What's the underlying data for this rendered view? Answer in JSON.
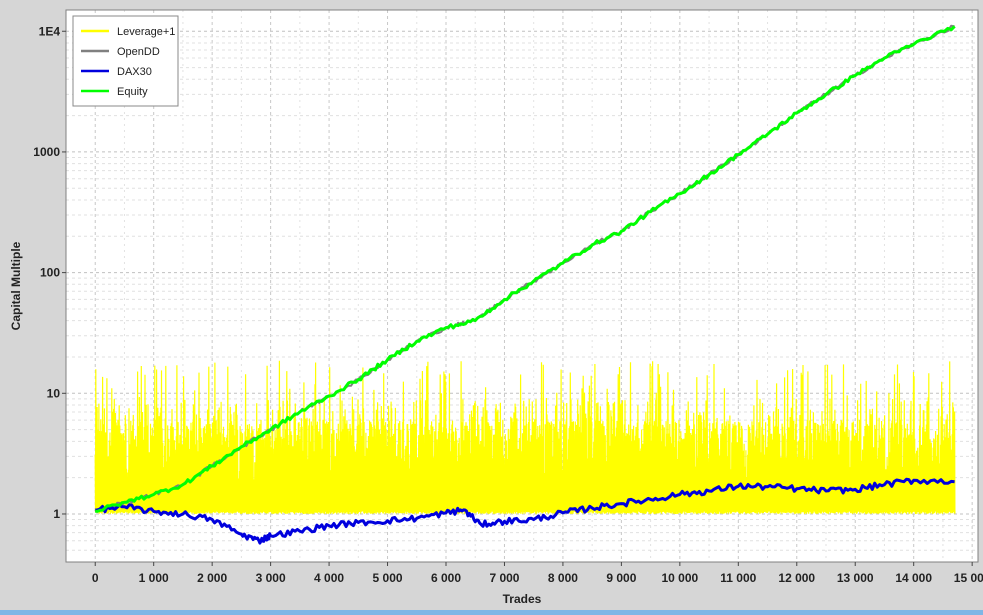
{
  "chart_data": {
    "type": "line",
    "title": "",
    "xlabel": "Trades",
    "ylabel": "Capital Multiple",
    "xlim": [
      -500,
      15100
    ],
    "ylim": [
      0.4,
      15000
    ],
    "y_scale": "log",
    "grid": true,
    "legend_position": "top-left",
    "x_ticks": [
      0,
      1000,
      2000,
      3000,
      4000,
      5000,
      6000,
      7000,
      8000,
      9000,
      10000,
      11000,
      12000,
      13000,
      14000,
      15000
    ],
    "x_tick_labels": [
      "0",
      "1 000",
      "2 000",
      "3 000",
      "4 000",
      "5 000",
      "6 000",
      "7 000",
      "8 000",
      "9 000",
      "10 000",
      "11 000",
      "12 000",
      "13 000",
      "14 000",
      "15 000"
    ],
    "y_ticks": [
      1,
      10,
      100,
      1000,
      10000
    ],
    "y_tick_labels": [
      "1",
      "10",
      "100",
      "1000",
      "1E4"
    ],
    "series": [
      {
        "name": "Leverage+1",
        "color": "#ffff00",
        "style": "band",
        "x_range": [
          0,
          14700
        ],
        "min": 1,
        "typical_max": 6,
        "peak_max": 19
      },
      {
        "name": "OpenDD",
        "color": "#808080",
        "x": [
          0,
          500,
          1000,
          1500,
          2000,
          2500,
          3000,
          3500,
          4000,
          4500,
          5000,
          5500,
          6000,
          6500,
          7000,
          7500,
          8000,
          8500,
          9000,
          9500,
          10000,
          10500,
          11000,
          11500,
          12000,
          12500,
          13000,
          13500,
          14000,
          14700
        ],
        "y": [
          1.05,
          1.25,
          1.45,
          1.75,
          2.5,
          3.6,
          5,
          7,
          9.5,
          13,
          19,
          27,
          35,
          40,
          60,
          85,
          120,
          170,
          220,
          320,
          450,
          650,
          950,
          1400,
          2100,
          3000,
          4300,
          6000,
          7800,
          11000
        ]
      },
      {
        "name": "DAX30",
        "color": "#0000dd",
        "x": [
          0,
          500,
          1000,
          1500,
          2000,
          2500,
          2800,
          3000,
          3500,
          4000,
          4500,
          5000,
          5500,
          6000,
          6300,
          6600,
          7000,
          7500,
          8000,
          8500,
          9000,
          9500,
          10000,
          10500,
          11000,
          11500,
          12000,
          12500,
          13000,
          13500,
          14000,
          14700
        ],
        "y": [
          1.08,
          1.15,
          1.05,
          1.0,
          0.9,
          0.68,
          0.6,
          0.66,
          0.72,
          0.8,
          0.85,
          0.88,
          0.92,
          1.02,
          1.08,
          0.82,
          0.87,
          0.9,
          1.02,
          1.12,
          1.22,
          1.32,
          1.45,
          1.55,
          1.7,
          1.68,
          1.62,
          1.55,
          1.6,
          1.75,
          1.9,
          1.85
        ]
      },
      {
        "name": "Equity",
        "color": "#00ff00",
        "x": [
          0,
          500,
          1000,
          1500,
          2000,
          2500,
          3000,
          3500,
          4000,
          4500,
          5000,
          5500,
          6000,
          6500,
          7000,
          7500,
          8000,
          8500,
          9000,
          9500,
          10000,
          10500,
          11000,
          11500,
          12000,
          12500,
          13000,
          13500,
          14000,
          14700
        ],
        "y": [
          1.05,
          1.25,
          1.45,
          1.75,
          2.5,
          3.6,
          5,
          7,
          9.5,
          13,
          19,
          27,
          35,
          40,
          60,
          85,
          120,
          170,
          220,
          320,
          450,
          650,
          950,
          1400,
          2100,
          3000,
          4300,
          6000,
          7800,
          11000
        ]
      }
    ]
  }
}
